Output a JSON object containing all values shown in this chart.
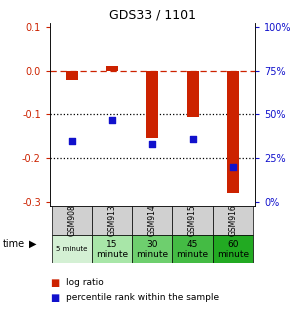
{
  "title": "GDS33 / 1101",
  "categories": [
    "GSM908",
    "GSM913",
    "GSM914",
    "GSM915",
    "GSM916"
  ],
  "log_ratio": [
    -0.022,
    0.01,
    -0.155,
    -0.105,
    -0.28
  ],
  "percentile_rank": [
    35,
    47,
    33,
    36,
    20
  ],
  "time_labels_top": [
    "5 minute",
    "15",
    "30",
    "45",
    "60"
  ],
  "time_labels_bot": [
    "",
    "minute",
    "minute",
    "minute",
    "minute"
  ],
  "time_colors": [
    "#d4f0d4",
    "#a8e6a8",
    "#6ecf6e",
    "#44bb44",
    "#22aa22"
  ],
  "ylim": [
    -0.31,
    0.11
  ],
  "yticks_left": [
    0.1,
    0.0,
    -0.1,
    -0.2,
    -0.3
  ],
  "yticks_right": [
    100,
    75,
    50,
    25,
    0
  ],
  "bar_color": "#cc2200",
  "square_color": "#1111cc",
  "dashed_line_color": "#cc2200",
  "dotted_line_color": "#000000",
  "bg_color": "#ffffff",
  "header_bg": "#d0d0d0"
}
